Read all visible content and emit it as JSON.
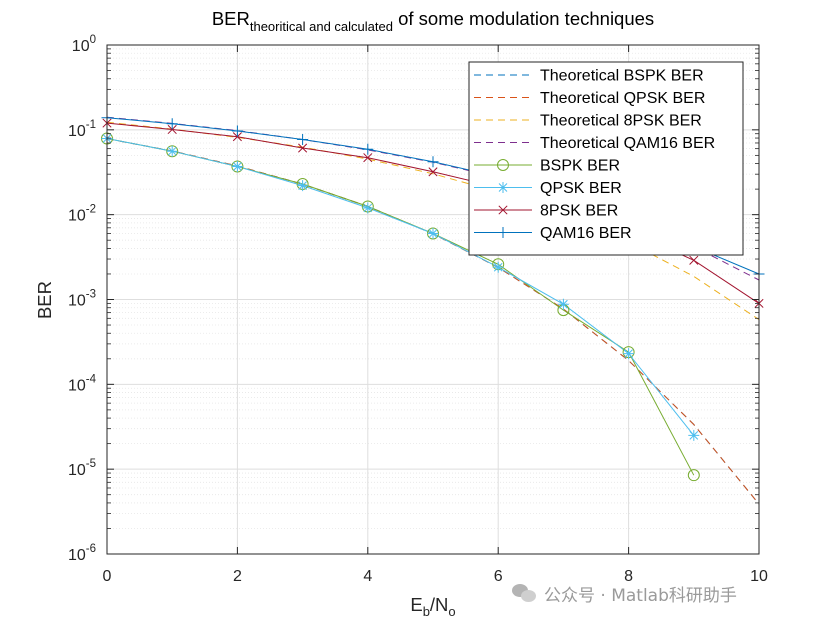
{
  "chart_data": {
    "type": "line",
    "title_main": "BER",
    "title_sub": "theoritical and calculated",
    "title_rest": " of some modulation techniques",
    "xlabel_main": "E",
    "xlabel_sub1": "b",
    "xlabel_mid": "/N",
    "xlabel_sub2": "o",
    "ylabel": "BER",
    "xlim": [
      0,
      10
    ],
    "ylim": [
      1e-06,
      1
    ],
    "yscale": "log",
    "grid": true,
    "legend_position": "top-right",
    "x_ticks": [
      {
        "value": 0,
        "label": "0"
      },
      {
        "value": 2,
        "label": "2"
      },
      {
        "value": 4,
        "label": "4"
      },
      {
        "value": 6,
        "label": "6"
      },
      {
        "value": 8,
        "label": "8"
      },
      {
        "value": 10,
        "label": "10"
      }
    ],
    "y_ticks": [
      {
        "value": 1,
        "base": "10",
        "exp": "0"
      },
      {
        "value": 0.1,
        "base": "10",
        "exp": "-1"
      },
      {
        "value": 0.01,
        "base": "10",
        "exp": "-2"
      },
      {
        "value": 0.001,
        "base": "10",
        "exp": "-3"
      },
      {
        "value": 0.0001,
        "base": "10",
        "exp": "-4"
      },
      {
        "value": 1e-05,
        "base": "10",
        "exp": "-5"
      },
      {
        "value": 1e-06,
        "base": "10",
        "exp": "-6"
      }
    ],
    "x": [
      0,
      1,
      2,
      3,
      4,
      5,
      6,
      7,
      8,
      9,
      10
    ],
    "series": [
      {
        "name": "Theoretical BSPK BER",
        "color": "#0072bd",
        "dash": true,
        "marker": "none",
        "values": [
          0.0786,
          0.0563,
          0.0375,
          0.0229,
          0.0125,
          0.00595,
          0.00239,
          0.000773,
          0.000191,
          3.36e-05,
          3.87e-06
        ]
      },
      {
        "name": "Theoretical QPSK BER",
        "color": "#d95319",
        "dash": true,
        "marker": "none",
        "values": [
          0.0786,
          0.0563,
          0.0375,
          0.0229,
          0.0125,
          0.00595,
          0.00239,
          0.000773,
          0.000191,
          3.36e-05,
          3.87e-06
        ]
      },
      {
        "name": "Theoretical 8PSK BER",
        "color": "#edb120",
        "dash": true,
        "marker": "none",
        "values": [
          0.123,
          0.102,
          0.0815,
          0.0625,
          0.0452,
          0.0303,
          0.0185,
          0.0101,
          0.00475,
          0.00187,
          0.00058
        ]
      },
      {
        "name": "Theoretical QAM16 BER",
        "color": "#7e2f8e",
        "dash": true,
        "marker": "none",
        "values": [
          0.141,
          0.119,
          0.098,
          0.077,
          0.058,
          0.0415,
          0.0275,
          0.0165,
          0.0089,
          0.0042,
          0.0017
        ]
      },
      {
        "name": "BSPK BER",
        "color": "#77ac30",
        "dash": false,
        "marker": "circle",
        "values": [
          0.079,
          0.056,
          0.037,
          0.023,
          0.0125,
          0.006,
          0.0026,
          0.00075,
          0.00024,
          8.5e-06,
          null
        ]
      },
      {
        "name": "QPSK BER",
        "color": "#4dbeee",
        "dash": false,
        "marker": "star",
        "values": [
          0.079,
          0.056,
          0.037,
          0.022,
          0.012,
          0.006,
          0.0024,
          0.00088,
          0.00023,
          2.5e-05,
          null
        ]
      },
      {
        "name": "8PSK BER",
        "color": "#a2142f",
        "dash": false,
        "marker": "x",
        "values": [
          0.12,
          0.101,
          0.083,
          0.061,
          0.047,
          0.032,
          0.021,
          0.012,
          0.0065,
          0.0029,
          0.0009
        ]
      },
      {
        "name": "QAM16 BER",
        "color": "#0072bd",
        "dash": false,
        "marker": "plus",
        "values": [
          0.139,
          0.118,
          0.097,
          0.077,
          0.059,
          0.042,
          0.028,
          0.017,
          0.0091,
          0.0042,
          0.002
        ]
      }
    ]
  },
  "watermark": {
    "text": "公众号 · Matlab科研助手",
    "icon": "wechat-icon"
  }
}
